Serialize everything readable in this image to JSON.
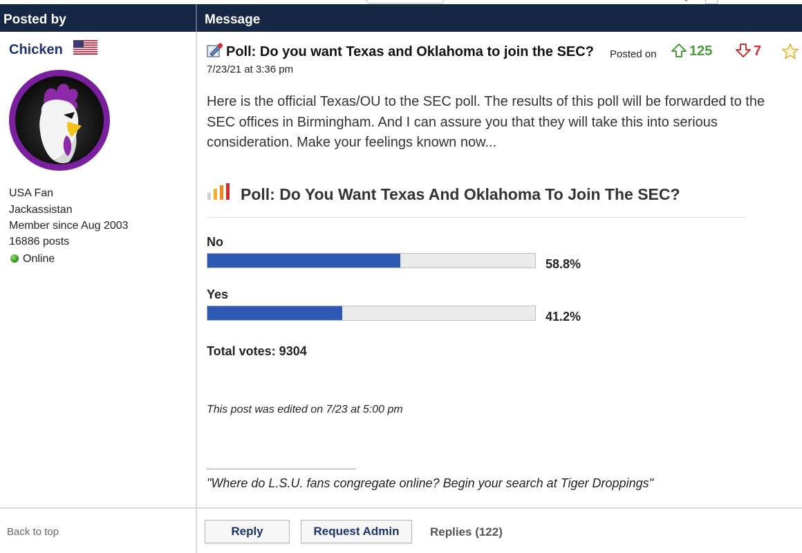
{
  "header": {
    "posted_by": "Posted by",
    "message": "Message"
  },
  "user": {
    "name": "Chicken",
    "title": "USA Fan",
    "location": "Jackassistan",
    "member_since": "Member since Aug 2003",
    "posts": "16886 posts",
    "status": "Online"
  },
  "post": {
    "title": "Poll: Do you want Texas and Oklahoma to join the SEC?",
    "posted_on_label": "Posted on",
    "date": "7/23/21 at 3:36 pm",
    "upvotes": "125",
    "downvotes": "7",
    "body": "Here is the official Texas/OU to the SEC poll. The results of this poll will be forwarded to the SEC offices in Birmingham. And I can assure you that they will take this into serious consideration. Make your feelings known now...",
    "edited": "This post was edited on 7/23 at 5:00 pm",
    "signature": "\"Where do L.S.U. fans congregate online? Begin your search at Tiger Droppings\""
  },
  "poll": {
    "title": "Poll: Do You Want Texas And Oklahoma To Join The SEC?",
    "options": [
      {
        "label": "No",
        "percent_text": "58.8%",
        "percent": 58.8
      },
      {
        "label": "Yes",
        "percent_text": "41.2%",
        "percent": 41.2
      }
    ],
    "total_votes": "Total votes: 9304"
  },
  "footer": {
    "back_to_top": "Back to top",
    "reply": "Reply",
    "request_admin": "Request Admin",
    "replies": "Replies (122)"
  },
  "colors": {
    "header_bg": "#162645",
    "username": "#1d3273",
    "poll_bar": "#2d58b3",
    "upvote": "#4a9a3b",
    "downvote": "#d2322d"
  }
}
